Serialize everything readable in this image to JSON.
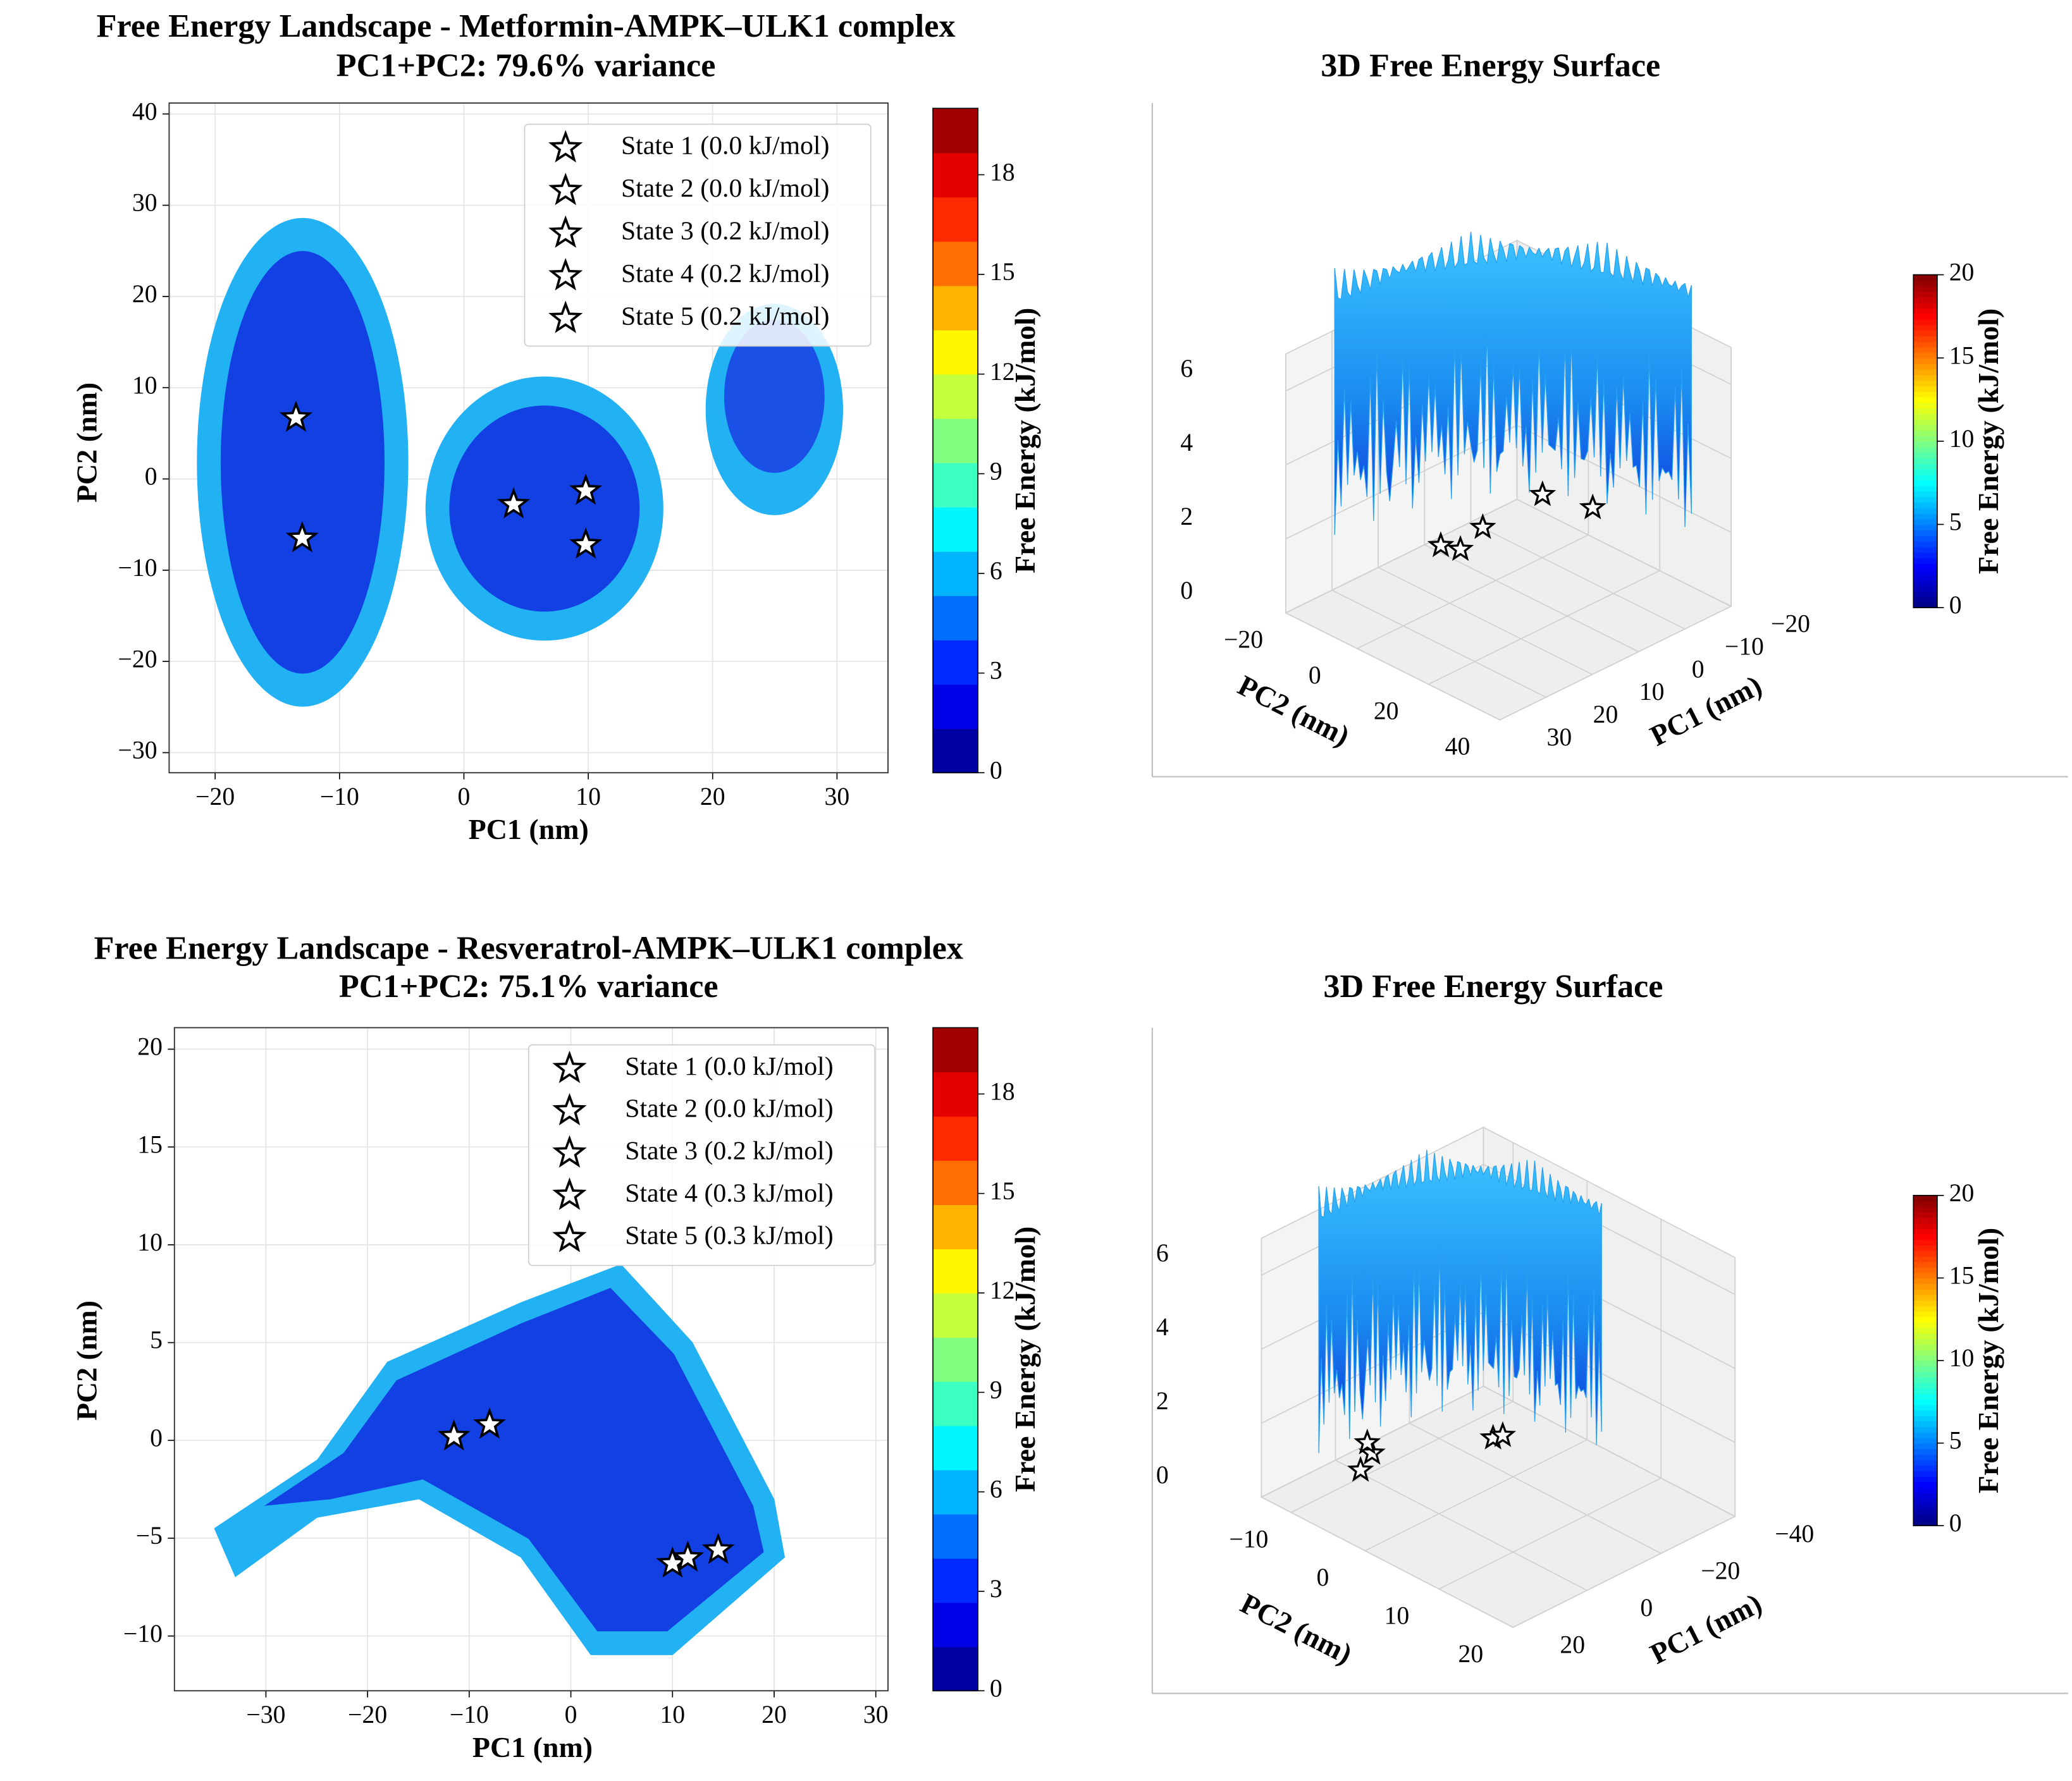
{
  "chart_data": [
    {
      "type": "landscape",
      "title": "Free Energy Landscape - Metformin-AMPK–ULK1 complex",
      "subtitle": "PC1+PC2: 79.6% variance",
      "xlabel": "PC1 (nm)",
      "ylabel": "PC2 (nm)",
      "xlim": [
        -23.7,
        34.1
      ],
      "ylim": [
        -32.2,
        41.2
      ],
      "xticks": [
        {
          "value": -20,
          "label": "−20"
        },
        {
          "value": -10,
          "label": "−10"
        },
        0,
        10,
        20,
        30
      ],
      "yticks": [
        {
          "value": -30,
          "label": "−30"
        },
        {
          "value": -20,
          "label": "−20"
        },
        {
          "value": -10,
          "label": "−10"
        },
        0,
        10,
        20,
        30,
        40
      ],
      "grid": true,
      "legend": "upper right",
      "colorbar": {
        "label": "Free Energy (kJ/mol)",
        "cmap": "jet",
        "lim": [
          0,
          20
        ],
        "ticks": [
          0,
          3,
          6,
          9,
          12,
          15,
          18
        ],
        "levels": 15
      },
      "series": [
        {
          "name": "State 1 (0.0 kJ/mol)",
          "x": [
            -13.5
          ],
          "values": [
            6.7
          ]
        },
        {
          "name": "State 2 (0.0 kJ/mol)",
          "x": [
            -13
          ],
          "values": [
            -6.5
          ]
        },
        {
          "name": "State 3 (0.2 kJ/mol)",
          "x": [
            4
          ],
          "values": [
            -2.8
          ]
        },
        {
          "name": "State 4 (0.2 kJ/mol)",
          "x": [
            9.8
          ],
          "values": [
            -1.3
          ]
        },
        {
          "name": "State 5 (0.2 kJ/mol)",
          "x": [
            9.8
          ],
          "values": [
            -7.2
          ]
        }
      ]
    },
    {
      "type": "surface3d",
      "title": "3D Free Energy Surface",
      "xlabel": "PC1 (nm)",
      "ylabel": "PC2 (nm)",
      "xlim": [
        -20,
        30
      ],
      "ylim": [
        -20,
        40
      ],
      "zlim": [
        0,
        7
      ],
      "xticks": [
        {
          "value": -20,
          "label": "−20"
        },
        {
          "value": -10,
          "label": "−10"
        },
        0,
        10,
        20,
        30
      ],
      "yticks": [
        {
          "value": -20,
          "label": "−20"
        },
        0,
        20,
        40
      ],
      "zticks": [
        0,
        2,
        4,
        6
      ],
      "colorbar": {
        "label": "Free Energy (kJ/mol)",
        "cmap": "jet",
        "lim": [
          0,
          20
        ],
        "ticks": [
          0,
          5,
          10,
          15,
          20
        ]
      },
      "points": {
        "x": [
          -1.6,
          -2.9,
          -8.5,
          -22.2,
          -24.8
        ],
        "y": [
          -17.5,
          -13.7,
          -14.7,
          -15.7,
          -5
        ],
        "z": [
          0,
          0,
          0.2,
          0.2,
          0.2
        ]
      }
    },
    {
      "type": "landscape",
      "title": "Free Energy Landscape - Resveratrol-AMPK–ULK1 complex",
      "subtitle": "PC1+PC2: 75.1% variance",
      "xlabel": "PC1 (nm)",
      "ylabel": "PC2 (nm)",
      "xlim": [
        -39,
        31.2
      ],
      "ylim": [
        -12.8,
        21.1
      ],
      "xticks": [
        {
          "value": -30,
          "label": "−30"
        },
        {
          "value": -20,
          "label": "−20"
        },
        {
          "value": -10,
          "label": "−10"
        },
        0,
        10,
        20,
        30
      ],
      "yticks": [
        {
          "value": -10,
          "label": "−10"
        },
        {
          "value": -5,
          "label": "−5"
        },
        0,
        5,
        10,
        15,
        20
      ],
      "grid": true,
      "legend": "upper right",
      "colorbar": {
        "label": "Free Energy (kJ/mol)",
        "cmap": "jet",
        "lim": [
          0,
          20
        ],
        "ticks": [
          0,
          3,
          6,
          9,
          12,
          15,
          18
        ],
        "levels": 15
      },
      "series": [
        {
          "name": "State 1 (0.0 kJ/mol)",
          "x": [
            -11.5
          ],
          "values": [
            0.2
          ]
        },
        {
          "name": "State 2 (0.0 kJ/mol)",
          "x": [
            -8
          ],
          "values": [
            0.8
          ]
        },
        {
          "name": "State 3 (0.2 kJ/mol)",
          "x": [
            10
          ],
          "values": [
            -6.3
          ]
        },
        {
          "name": "State 4 (0.3 kJ/mol)",
          "x": [
            11.5
          ],
          "values": [
            -6
          ]
        },
        {
          "name": "State 5 (0.3 kJ/mol)",
          "x": [
            14.5
          ],
          "values": [
            -5.6
          ]
        }
      ]
    },
    {
      "type": "surface3d",
      "title": "3D Free Energy Surface",
      "xlabel": "PC1 (nm)",
      "ylabel": "PC2 (nm)",
      "xlim": [
        -40,
        20
      ],
      "ylim": [
        -14,
        20
      ],
      "zlim": [
        0,
        7
      ],
      "xticks": [
        {
          "value": -40,
          "label": "−40"
        },
        {
          "value": -20,
          "label": "−20"
        },
        0,
        20
      ],
      "yticks": [
        {
          "value": -10,
          "label": "−10"
        },
        0,
        10,
        20
      ],
      "zticks": [
        0,
        2,
        4,
        6
      ],
      "colorbar": {
        "label": "Free Energy (kJ/mol)",
        "cmap": "jet",
        "lim": [
          0,
          20
        ],
        "ticks": [
          0,
          5,
          10,
          15,
          20
        ]
      },
      "points": {
        "x": [
          -0.8,
          -6.9,
          -7,
          -24.6,
          -26.6
        ],
        "y": [
          -11,
          -12.5,
          -13.2,
          -5,
          -4.7
        ],
        "z": [
          0,
          0,
          0.2,
          0.3,
          0.3
        ]
      }
    }
  ]
}
